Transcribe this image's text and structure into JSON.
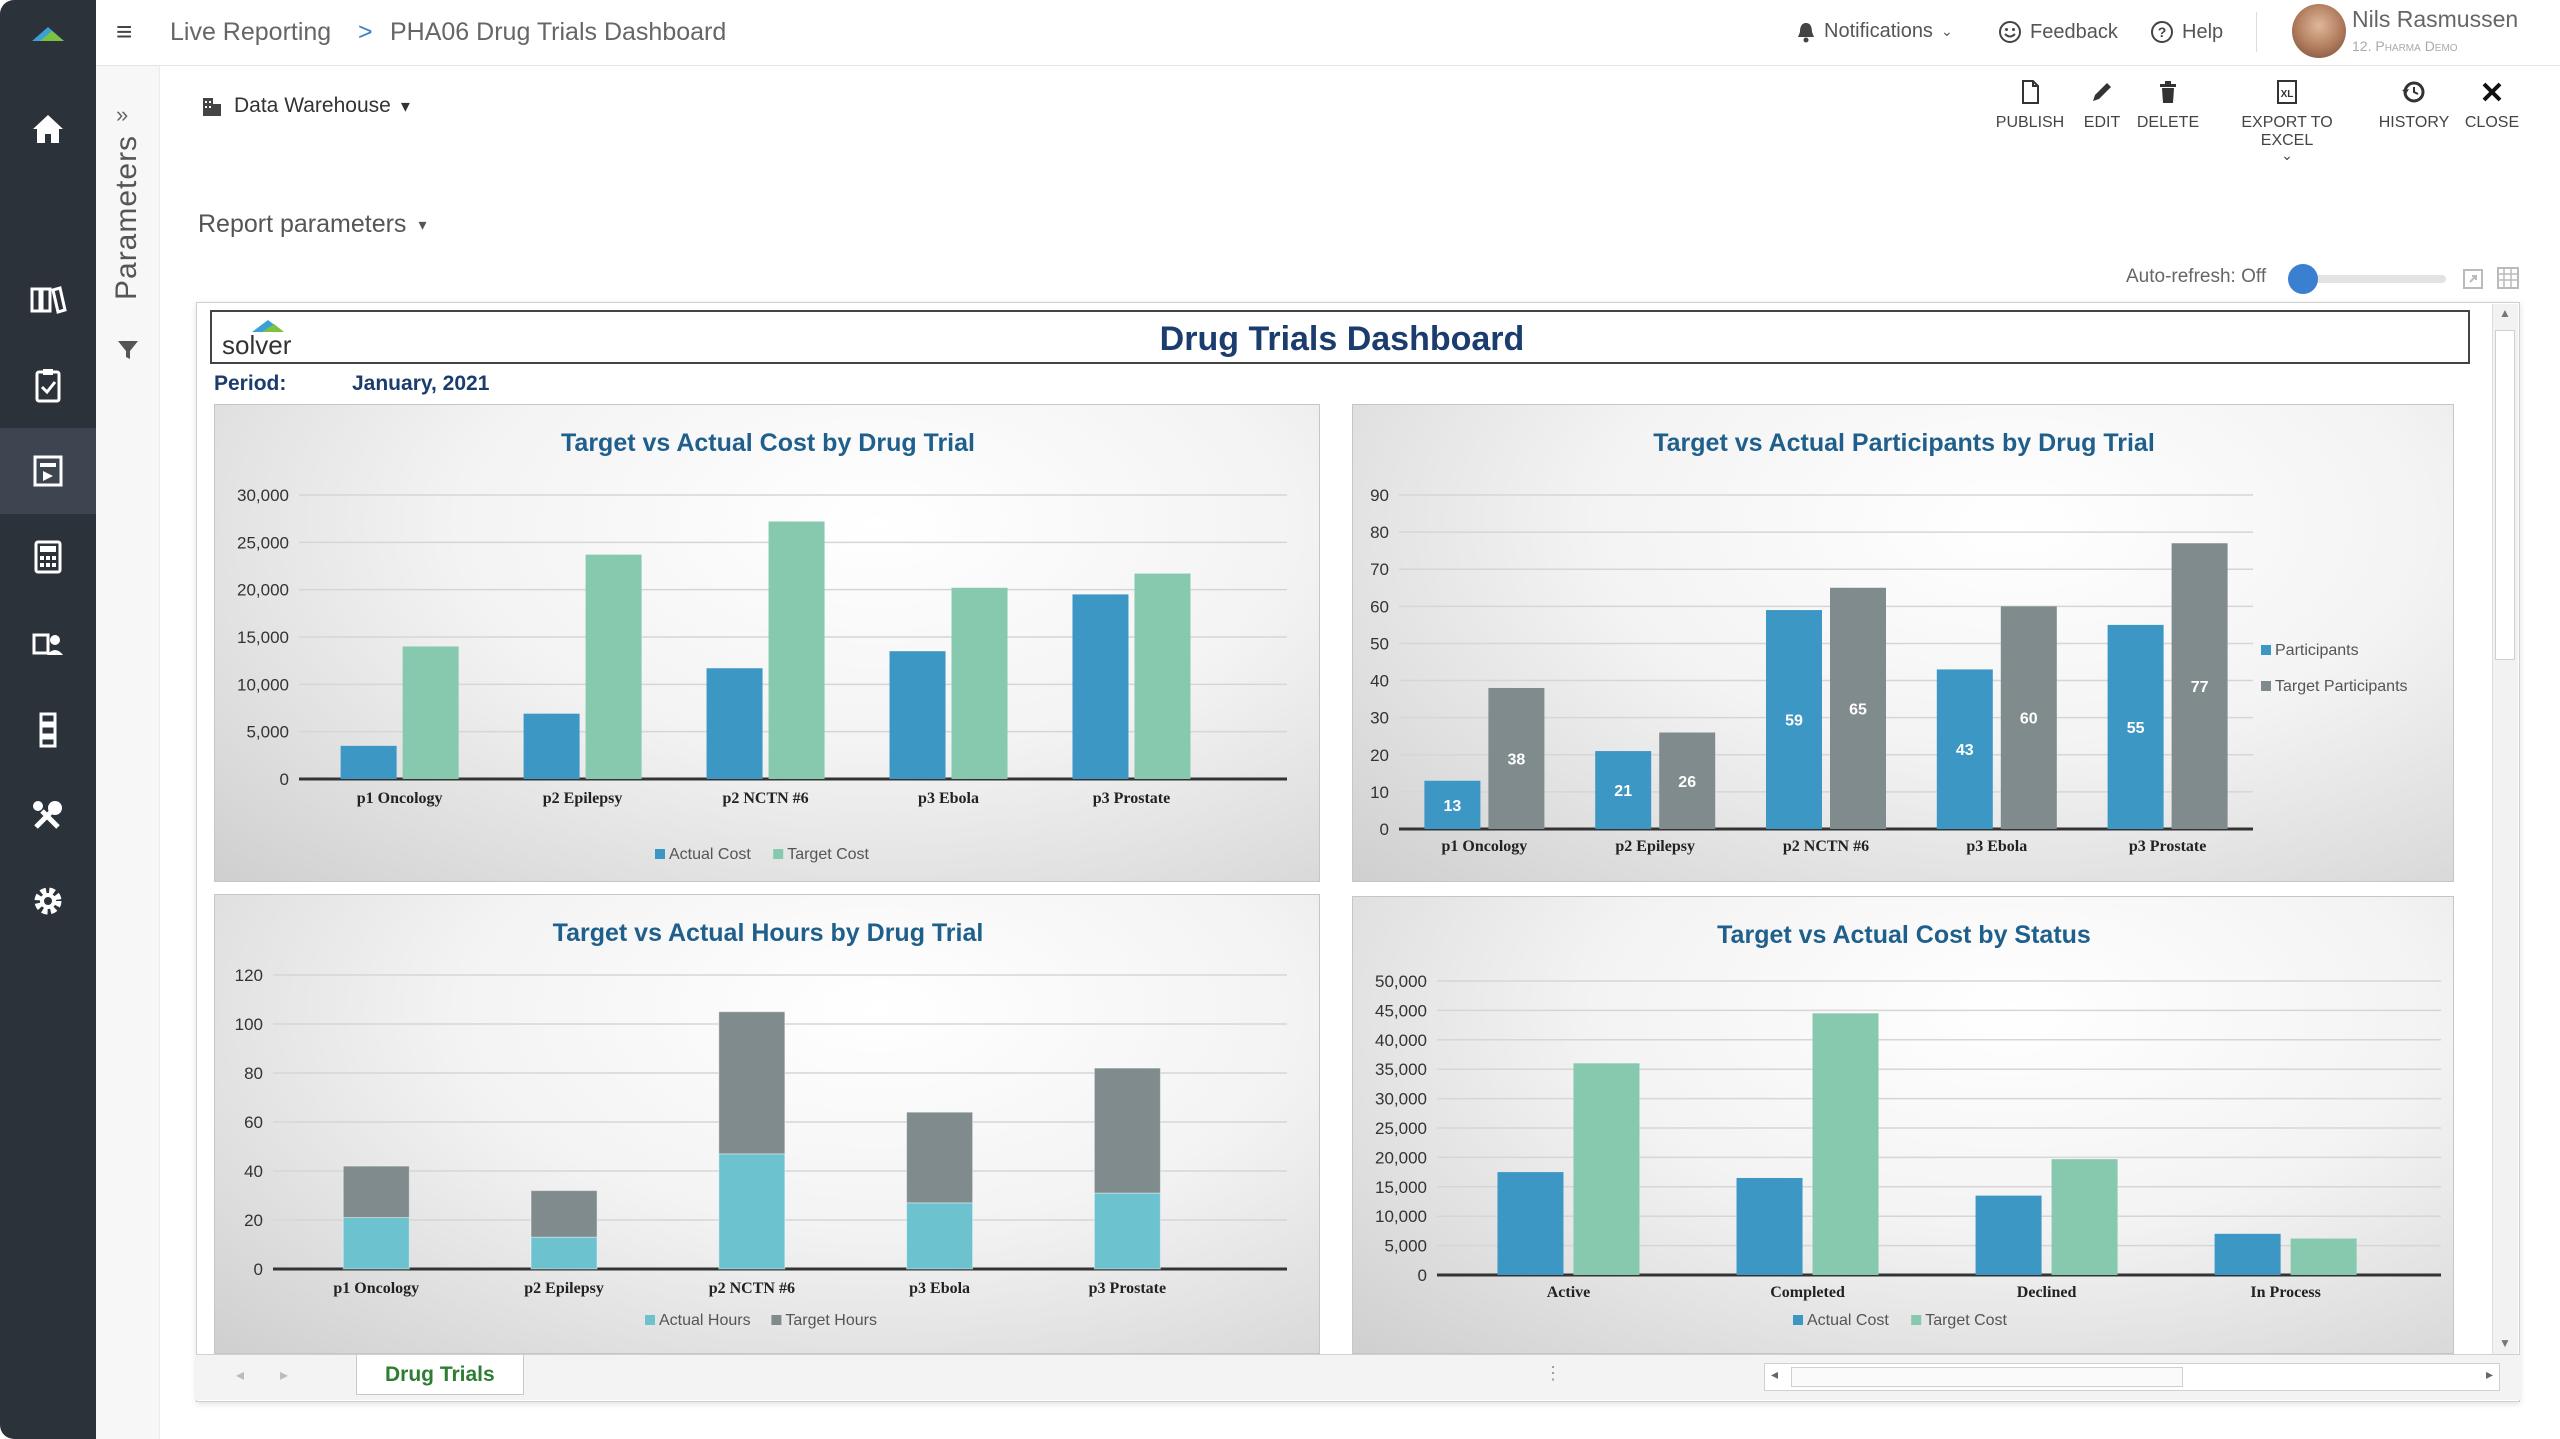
{
  "header": {
    "breadcrumb_root": "Live Reporting",
    "breadcrumb_sep": ">",
    "breadcrumb_page": "PHA06 Drug Trials Dashboard",
    "notifications": "Notifications",
    "feedback": "Feedback",
    "help": "Help",
    "user_name": "Nils Rasmussen",
    "user_company": "12. Pharma Demo"
  },
  "params": {
    "label": "Parameters"
  },
  "toolbar": {
    "datasource": "Data Warehouse",
    "publish": "PUBLISH",
    "edit": "EDIT",
    "delete": "DELETE",
    "export": "EXPORT TO EXCEL",
    "history": "HISTORY",
    "close": "CLOSE"
  },
  "report_params": "Report parameters",
  "autorefresh": "Auto-refresh: Off",
  "dashboard": {
    "logo": "solver",
    "title": "Drug Trials Dashboard",
    "period_label": "Period:",
    "period_value": "January, 2021"
  },
  "tabs": {
    "sheet": "Drug Trials"
  },
  "colors": {
    "blue": "#3d97c4",
    "green": "#86c9ae",
    "gray": "#808b8d",
    "teal": "#6cc3cf",
    "title": "#1f5f8b"
  },
  "chart_data": [
    {
      "type": "bar",
      "title": "Target vs Actual Cost by Drug Trial",
      "categories": [
        "p1 Oncology",
        "p2 Epilepsy",
        "p2 NCTN #6",
        "p3 Ebola",
        "p3 Prostate"
      ],
      "series": [
        {
          "name": "Actual Cost",
          "values": [
            3500,
            6900,
            11700,
            13500,
            19500
          ]
        },
        {
          "name": "Target Cost",
          "values": [
            14000,
            23700,
            27200,
            20200,
            21700
          ]
        }
      ],
      "ylim": [
        0,
        30000
      ],
      "yticks": [
        "0",
        "5,000",
        "10,000",
        "15,000",
        "20,000",
        "25,000",
        "30,000"
      ]
    },
    {
      "type": "bar",
      "title": "Target vs Actual Participants by Drug Trial",
      "categories": [
        "p1 Oncology",
        "p2 Epilepsy",
        "p2 NCTN #6",
        "p3 Ebola",
        "p3 Prostate"
      ],
      "series": [
        {
          "name": "Participants",
          "values": [
            13,
            21,
            59,
            43,
            55
          ]
        },
        {
          "name": "Target Participants",
          "values": [
            38,
            26,
            65,
            60,
            77
          ]
        }
      ],
      "ylim": [
        0,
        90
      ],
      "yticks": [
        "0",
        "10",
        "20",
        "30",
        "40",
        "50",
        "60",
        "70",
        "80",
        "90"
      ]
    },
    {
      "type": "bar",
      "title": "Target vs Actual Hours by Drug Trial",
      "categories": [
        "p1 Oncology",
        "p2 Epilepsy",
        "p2 NCTN #6",
        "p3 Ebola",
        "p3 Prostate"
      ],
      "series": [
        {
          "name": "Actual Hours",
          "values": [
            21,
            13,
            47,
            27,
            31
          ]
        },
        {
          "name": "Target Hours",
          "values": [
            21,
            19,
            58,
            37,
            51
          ]
        }
      ],
      "stacked": true,
      "ylim": [
        0,
        120
      ],
      "yticks": [
        "0",
        "20",
        "40",
        "60",
        "80",
        "100",
        "120"
      ]
    },
    {
      "type": "bar",
      "title": "Target vs Actual Cost by Status",
      "categories": [
        "Active",
        "Completed",
        "Declined",
        "In Process"
      ],
      "series": [
        {
          "name": "Actual Cost",
          "values": [
            17500,
            16500,
            13500,
            7000
          ]
        },
        {
          "name": "Target Cost",
          "values": [
            36000,
            44500,
            19700,
            6200
          ]
        }
      ],
      "ylim": [
        0,
        50000
      ],
      "yticks": [
        "0",
        "5,000",
        "10,000",
        "15,000",
        "20,000",
        "25,000",
        "30,000",
        "35,000",
        "40,000",
        "45,000",
        "50,000"
      ]
    }
  ]
}
